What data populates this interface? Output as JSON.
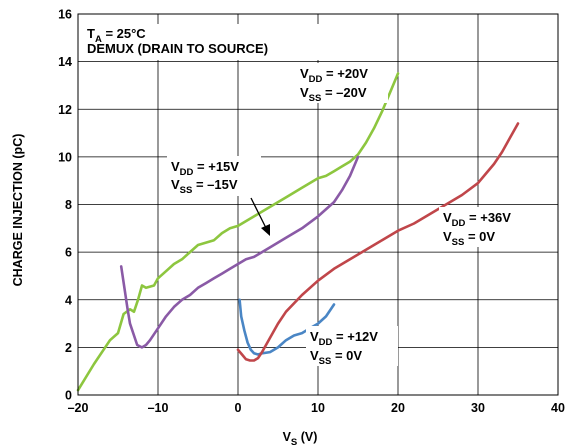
{
  "chart_data": {
    "type": "line",
    "title": "",
    "xlabel": {
      "main": "V",
      "sub": "S",
      "unit": " (V)"
    },
    "ylabel": "CHARGE INJECTION (pC)",
    "xlim": [
      -20,
      40
    ],
    "ylim": [
      0,
      16
    ],
    "xticks": [
      -20,
      -10,
      0,
      10,
      20,
      30,
      40
    ],
    "yticks": [
      0,
      2,
      4,
      6,
      8,
      10,
      12,
      14,
      16
    ],
    "xtick_labels": [
      "–20",
      "–10",
      "0",
      "10",
      "20",
      "30",
      "40"
    ],
    "grid": true,
    "legend": "none",
    "conditions": {
      "line1": {
        "main": "T",
        "sub": "A",
        "rest": " = 25°C"
      },
      "line2": "DEMUX (DRAIN TO SOURCE)"
    },
    "series": [
      {
        "color": "#8dc63f",
        "x": [
          -20,
          -18,
          -16,
          -15,
          -14.3,
          -13.5,
          -13,
          -12.5,
          -12,
          -11.5,
          -10.5,
          -10,
          -9,
          -8,
          -7,
          -6,
          -5,
          -4,
          -3,
          -2,
          -1,
          0,
          2,
          4,
          6,
          8,
          10,
          11,
          12,
          13,
          14,
          15,
          16,
          17,
          18,
          19,
          20
        ],
        "y": [
          0.2,
          1.3,
          2.3,
          2.6,
          3.4,
          3.6,
          3.5,
          4.0,
          4.6,
          4.5,
          4.6,
          4.9,
          5.2,
          5.5,
          5.7,
          6.0,
          6.3,
          6.4,
          6.5,
          6.8,
          7.0,
          7.1,
          7.5,
          7.9,
          8.3,
          8.7,
          9.1,
          9.2,
          9.4,
          9.6,
          9.8,
          10.1,
          10.6,
          11.2,
          11.9,
          12.7,
          13.5
        ]
      },
      {
        "color": "#8a5aa6",
        "x": [
          -14.6,
          -14.2,
          -13.8,
          -13.5,
          -13,
          -12.6,
          -12,
          -11.5,
          -11,
          -10,
          -9,
          -8,
          -7,
          -6,
          -5,
          -4,
          -3,
          -2,
          -1,
          0,
          1,
          2,
          4,
          6,
          8,
          10,
          12,
          13,
          14,
          15
        ],
        "y": [
          5.4,
          4.5,
          3.6,
          3.0,
          2.5,
          2.1,
          2.0,
          2.1,
          2.3,
          2.8,
          3.3,
          3.7,
          4.0,
          4.2,
          4.5,
          4.7,
          4.9,
          5.1,
          5.3,
          5.5,
          5.7,
          5.8,
          6.2,
          6.6,
          7.0,
          7.5,
          8.1,
          8.6,
          9.2,
          10.0
        ]
      },
      {
        "color": "#4a86c5",
        "x": [
          0.2,
          0.4,
          0.8,
          1.2,
          1.6,
          2.0,
          2.5,
          3.0,
          4,
          5,
          6,
          7,
          8,
          9,
          10,
          11,
          12
        ],
        "y": [
          4.0,
          3.3,
          2.7,
          2.2,
          1.9,
          1.75,
          1.7,
          1.75,
          1.8,
          2.0,
          2.3,
          2.5,
          2.6,
          2.8,
          3.0,
          3.3,
          3.8
        ]
      },
      {
        "color": "#c0464a",
        "x": [
          0,
          0.5,
          1,
          1.5,
          2,
          2.5,
          3,
          4,
          5,
          6,
          8,
          10,
          12,
          14,
          16,
          18,
          20,
          22,
          24,
          26,
          28,
          30,
          31,
          32,
          33,
          34,
          35
        ],
        "y": [
          1.9,
          1.7,
          1.5,
          1.45,
          1.45,
          1.55,
          1.8,
          2.4,
          3.0,
          3.5,
          4.2,
          4.8,
          5.3,
          5.7,
          6.1,
          6.5,
          6.9,
          7.2,
          7.6,
          8.0,
          8.4,
          8.9,
          9.3,
          9.7,
          10.2,
          10.8,
          11.4
        ]
      }
    ],
    "annotations": [
      {
        "vdd": " = +20V",
        "vss": " = –20V"
      },
      {
        "vdd": " = +15V",
        "vss": " = –15V"
      },
      {
        "vdd": " = +36V",
        "vss": " = 0V"
      },
      {
        "vdd": " = +12V",
        "vss": " = 0V"
      }
    ],
    "annotation_labels": {
      "dd": "DD",
      "ss": "SS",
      "v": "V"
    }
  }
}
